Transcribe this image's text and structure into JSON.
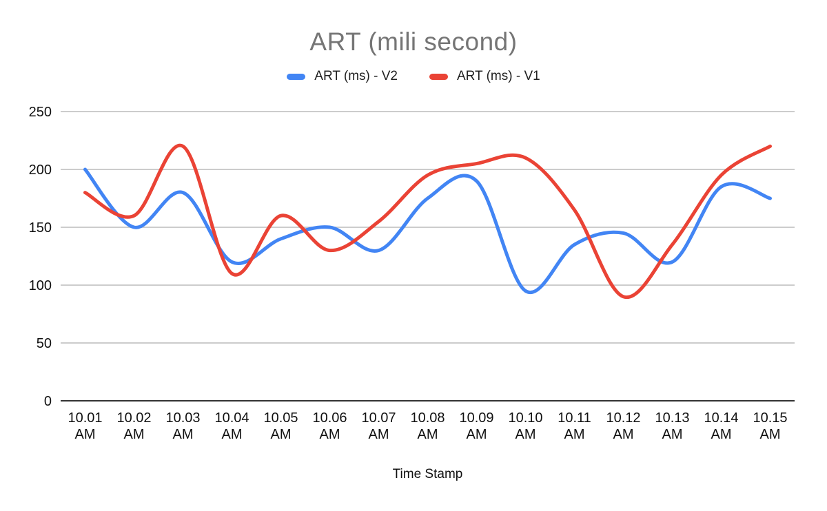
{
  "chart_data": {
    "type": "line",
    "smooth": true,
    "title": "ART (mili second)",
    "title_color": "#757575",
    "xlabel": "Time Stamp",
    "ylabel": "",
    "ylim": [
      0,
      250
    ],
    "yticks": [
      0,
      50,
      100,
      150,
      200,
      250
    ],
    "grid": true,
    "legend_position": "top",
    "categories": [
      "10.01 AM",
      "10.02 AM",
      "10.03 AM",
      "10.04 AM",
      "10.05 AM",
      "10.06 AM",
      "10.07 AM",
      "10.08 AM",
      "10.09 AM",
      "10.10 AM",
      "10.11 AM",
      "10.12 AM",
      "10.13 AM",
      "10.14 AM",
      "10.15 AM"
    ],
    "series": [
      {
        "name": "ART (ms) - V2",
        "color": "#4285F4",
        "values": [
          200,
          150,
          180,
          120,
          140,
          150,
          130,
          175,
          190,
          95,
          135,
          145,
          120,
          185,
          175
        ]
      },
      {
        "name": "ART (ms) - V1",
        "color": "#EA4335",
        "values": [
          180,
          160,
          220,
          110,
          160,
          130,
          155,
          195,
          205,
          210,
          165,
          90,
          135,
          195,
          220
        ]
      }
    ],
    "colors": {
      "gridline": "#cccccc",
      "baseline": "#333333"
    }
  }
}
